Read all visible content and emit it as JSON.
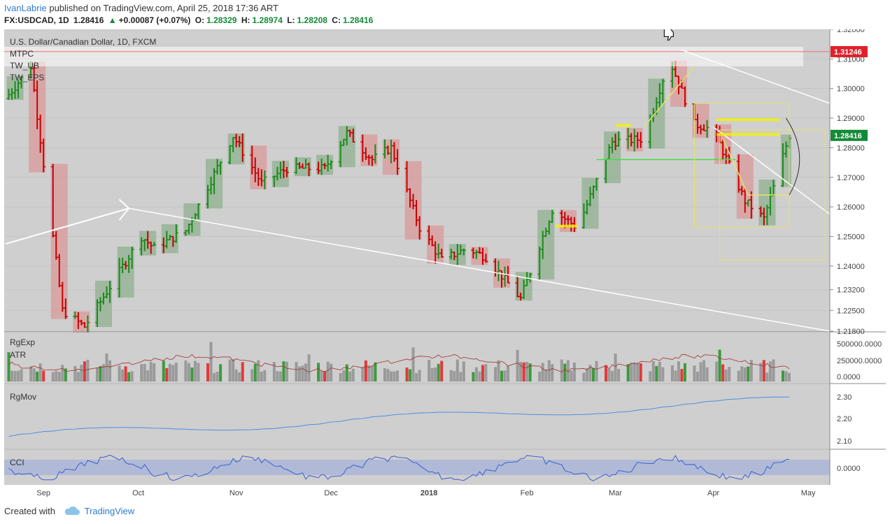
{
  "header": {
    "user": "IvanLabrie",
    "published": "published on TradingView.com, April 25, 2018 17:36 ART",
    "symbol": "FX:USDCAD, 1D",
    "last": "1.28416",
    "change_arrow": "▲",
    "change": "+0.00087 (+0.07%)",
    "o_label": "O:",
    "o": "1.28329",
    "h_label": "H:",
    "h": "1.28974",
    "l_label": "L:",
    "l": "1.28208",
    "c_label": "C:",
    "c": "1.28416"
  },
  "footer": {
    "created": "Created with",
    "brand": "TradingView"
  },
  "colors": {
    "background": "#cfcfcf",
    "grid": "#c4c4c4",
    "up_bar": "#1a8a1a",
    "down_bar": "#c80000",
    "up_box": "#8fb08f",
    "down_box": "#d99a9a",
    "up_volume": "#3c9a3c",
    "down_volume": "#e03a3a",
    "neutral_volume": "#9a9a9a",
    "price_badge": "#138a36",
    "level_badge": "#e0202a",
    "channel": "#ffffff",
    "yellow": "#f4f400",
    "lime": "#44dd44",
    "rgmov_line": "#4a90e2",
    "cci_band": "#aab6d8",
    "cci_line": "#3b5fcf"
  },
  "icons": {
    "top_marker": "thumbs-down-icon",
    "footer_logo": "tradingview-cloud-icon"
  },
  "chart_data": {
    "type": "ohlc_bar",
    "title": "U.S. Dollar/Canadian Dollar, 1D, FXCM",
    "legend": [
      "MTPC",
      "TW_UB",
      "TW_EPS"
    ],
    "price_axis_labels": [
      "1.32000",
      "1.31000",
      "1.30000",
      "1.29000",
      "1.28000",
      "1.27000",
      "1.26000",
      "1.25000",
      "1.24000",
      "1.23200",
      "1.22500",
      "1.21800"
    ],
    "ylim": [
      1.218,
      1.32
    ],
    "x_axis_labels": [
      "Sep",
      "Oct",
      "Nov",
      "Dec",
      "2018",
      "Feb",
      "Mar",
      "Apr",
      "May"
    ],
    "current_price": "1.28416",
    "horizontal_level": "1.31246",
    "price_anchors": [
      {
        "date": "2018-08-20",
        "close": 1.2966
      },
      {
        "date": "2018-08-28",
        "close": 1.3075
      },
      {
        "date": "2018-09-07",
        "close": 1.225
      },
      {
        "date": "2018-09-14",
        "close": 1.2195
      },
      {
        "date": "2018-10-02",
        "close": 1.25
      },
      {
        "date": "2018-10-06",
        "close": 1.246
      },
      {
        "date": "2018-10-16",
        "close": 1.252
      },
      {
        "date": "2018-10-31",
        "close": 1.284
      },
      {
        "date": "2018-11-09",
        "close": 1.268
      },
      {
        "date": "2018-11-17",
        "close": 1.273
      },
      {
        "date": "2018-11-29",
        "close": 1.273
      },
      {
        "date": "2018-12-06",
        "close": 1.285
      },
      {
        "date": "2018-12-14",
        "close": 1.276
      },
      {
        "date": "2018-12-20",
        "close": 1.28
      },
      {
        "date": "2018-12-29",
        "close": 1.253
      },
      {
        "date": "2018-01-05",
        "close": 1.242
      },
      {
        "date": "2018-01-13",
        "close": 1.246
      },
      {
        "date": "2018-01-19",
        "close": 1.243
      },
      {
        "date": "2018-01-30",
        "close": 1.229
      },
      {
        "date": "2018-02-09",
        "close": 1.259
      },
      {
        "date": "2018-02-17",
        "close": 1.253
      },
      {
        "date": "2018-02-28",
        "close": 1.282
      },
      {
        "date": "2018-03-10",
        "close": 1.283
      },
      {
        "date": "2018-03-18",
        "close": 1.31
      },
      {
        "date": "2018-03-26",
        "close": 1.288
      },
      {
        "date": "2018-04-01",
        "close": 1.286
      },
      {
        "date": "2018-04-11",
        "close": 1.262
      },
      {
        "date": "2018-04-17",
        "close": 1.256
      },
      {
        "date": "2018-04-25",
        "close": 1.2842
      }
    ],
    "panes": [
      {
        "name": "RgExp",
        "axis_labels": [
          "500000.0000",
          "250000.0000",
          "0.0000"
        ]
      },
      {
        "name": "ATR",
        "axis_labels": []
      },
      {
        "name": "RgMov",
        "axis_labels": [
          "2.30",
          "2.20",
          "2.10"
        ]
      },
      {
        "name": "CCI",
        "axis_labels": [
          "0.0000"
        ]
      }
    ]
  }
}
